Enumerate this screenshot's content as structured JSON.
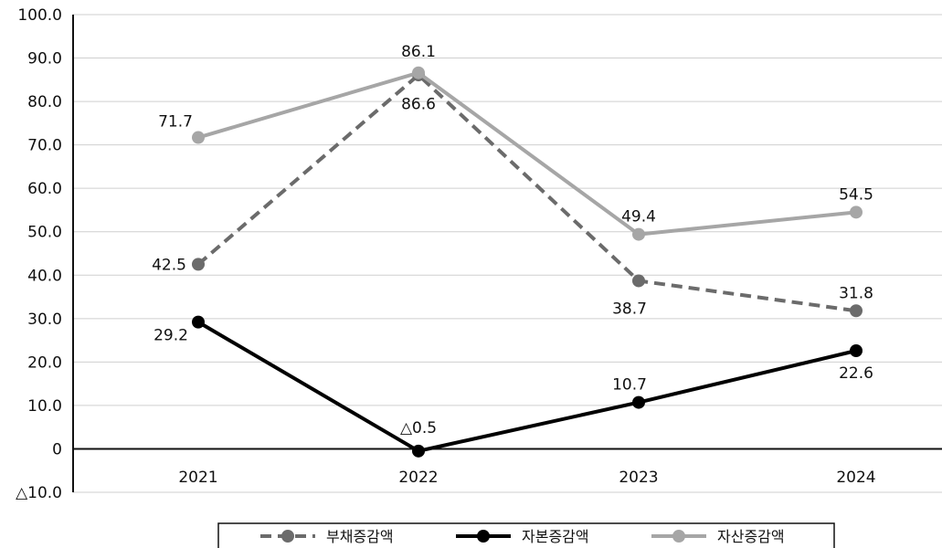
{
  "chart_data": {
    "type": "line",
    "categories": [
      "2021",
      "2022",
      "2023",
      "2024"
    ],
    "ylim": [
      -10,
      100
    ],
    "yticks": [
      {
        "value": 100,
        "label": "100.0"
      },
      {
        "value": 90,
        "label": "90.0"
      },
      {
        "value": 80,
        "label": "80.0"
      },
      {
        "value": 70,
        "label": "70.0"
      },
      {
        "value": 60,
        "label": "60.0"
      },
      {
        "value": 50,
        "label": "50.0"
      },
      {
        "value": 40,
        "label": "40.0"
      },
      {
        "value": 30,
        "label": "30.0"
      },
      {
        "value": 20,
        "label": "20.0"
      },
      {
        "value": 10,
        "label": "10.0"
      },
      {
        "value": 0,
        "label": "0"
      },
      {
        "value": -10,
        "label": "△10.0"
      }
    ],
    "grid": true,
    "legend_position": "bottom",
    "series": [
      {
        "name": "부채증감액",
        "style": "dashed",
        "color": "#6b6b6b",
        "values": [
          42.5,
          86.1,
          38.7,
          31.8
        ],
        "labels": [
          "42.5",
          "86.1",
          "38.7",
          "31.8"
        ]
      },
      {
        "name": "자본증감액",
        "style": "solid",
        "color": "#000000",
        "values": [
          29.2,
          -0.5,
          10.7,
          22.6
        ],
        "labels": [
          "29.2",
          "△0.5",
          "10.7",
          "22.6"
        ]
      },
      {
        "name": "자산증감액",
        "style": "solid",
        "color": "#a6a6a6",
        "values": [
          71.7,
          86.6,
          49.4,
          54.5
        ],
        "labels": [
          "71.7",
          "86.6",
          "49.4",
          "54.5"
        ]
      }
    ]
  }
}
